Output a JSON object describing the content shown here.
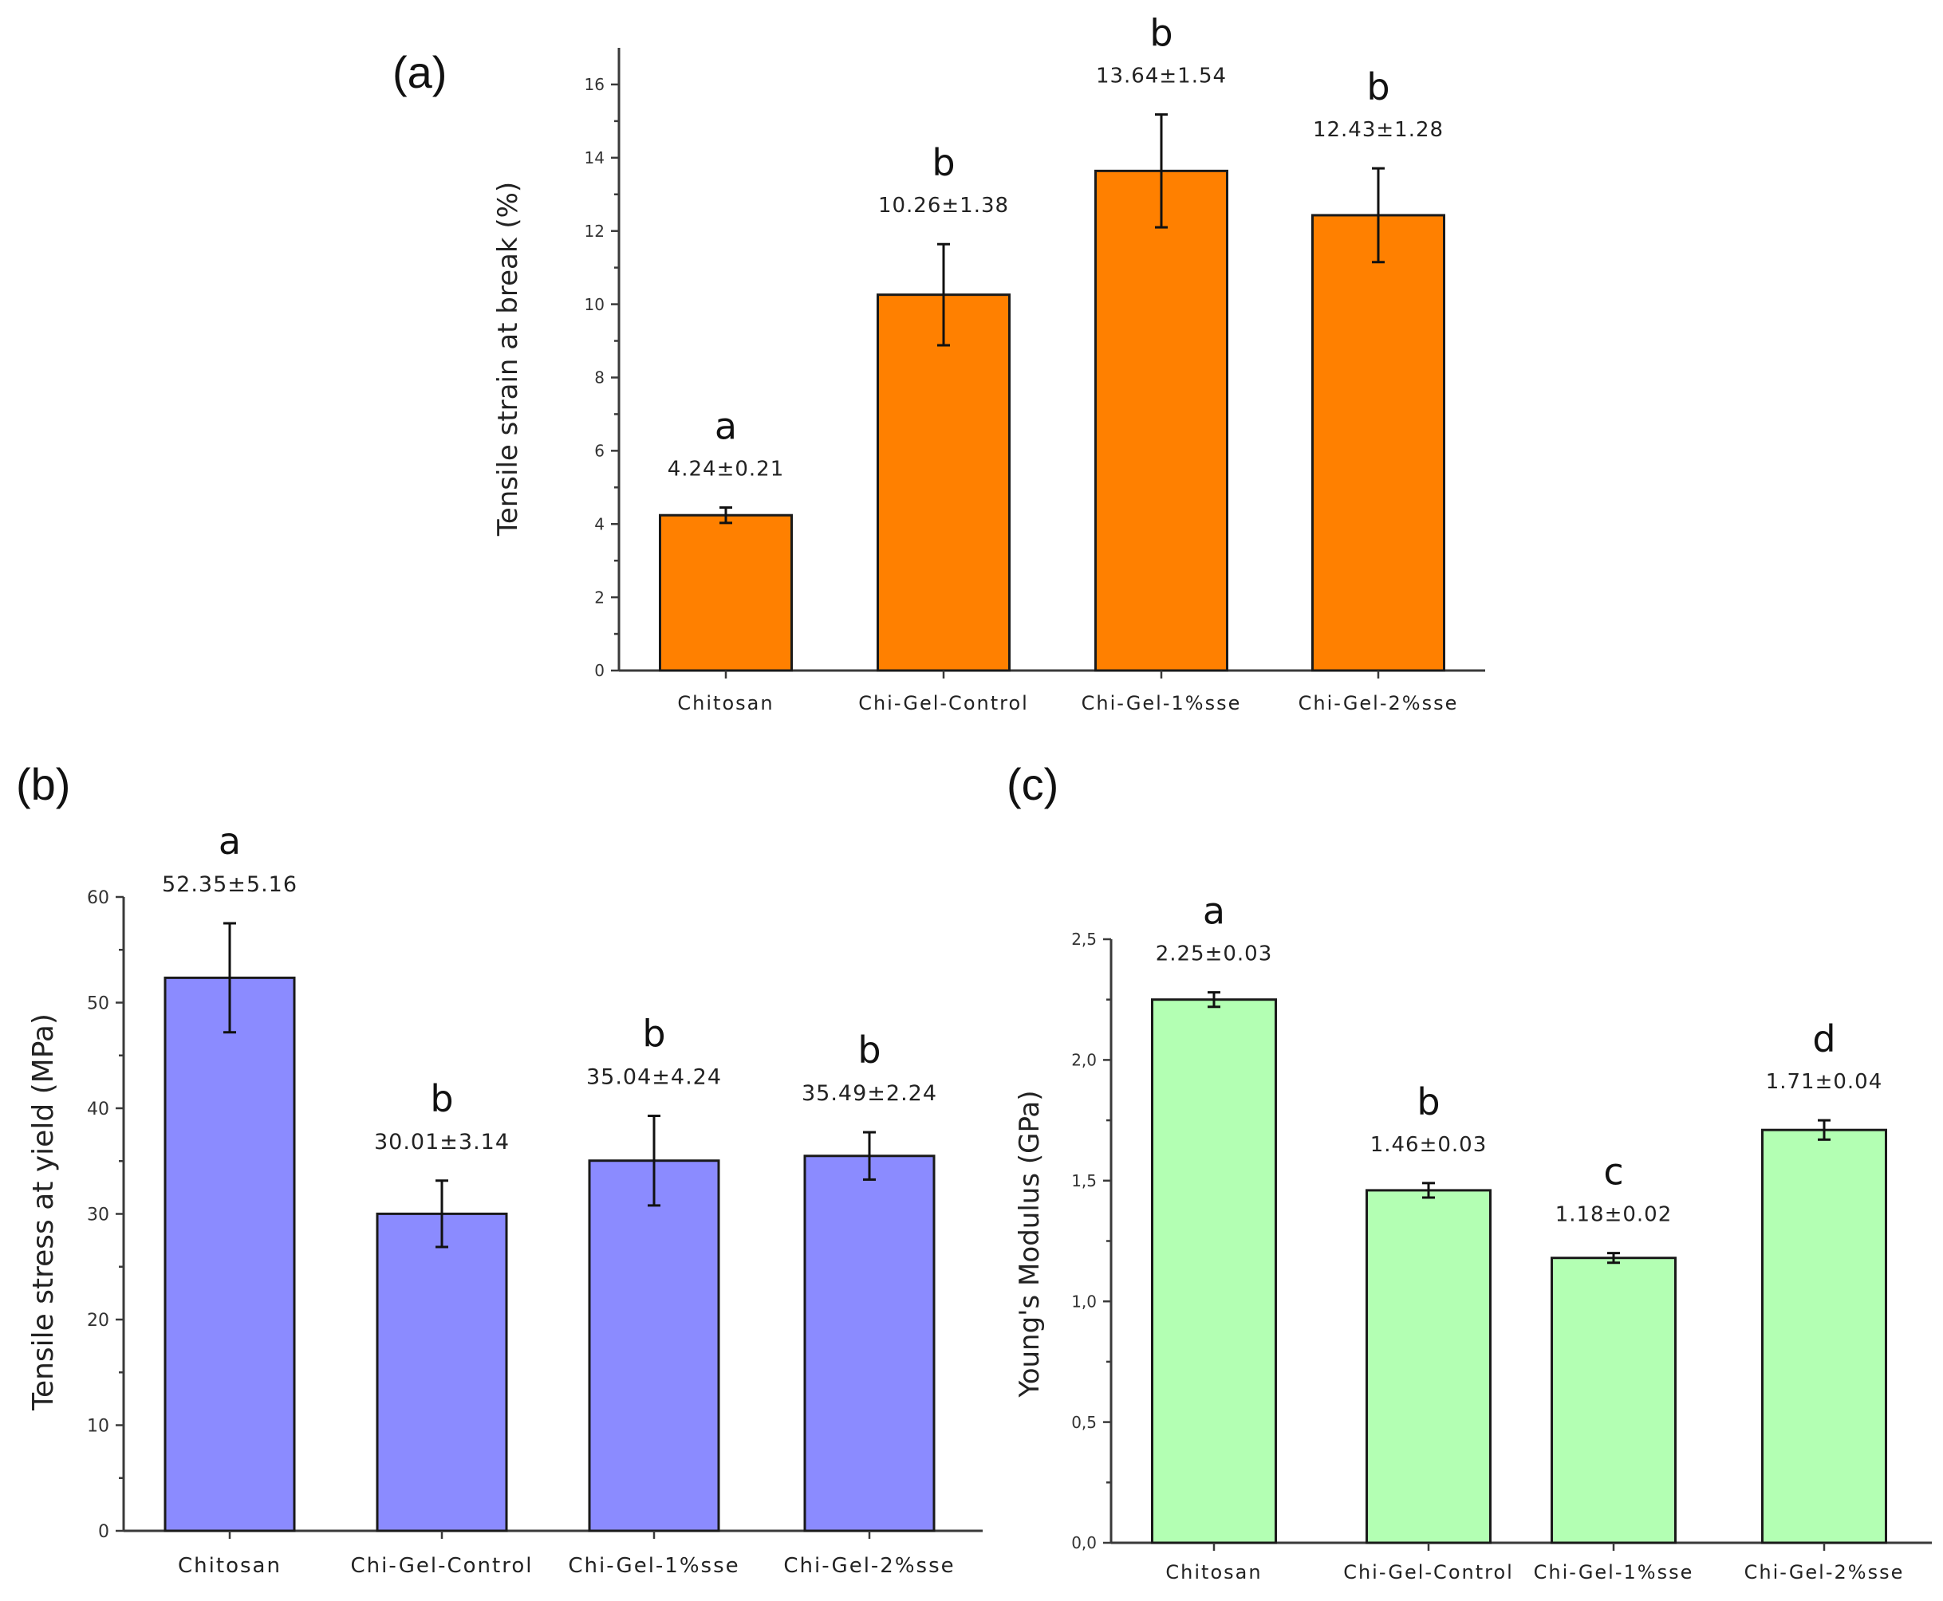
{
  "chart_data": [
    {
      "type": "bar",
      "panel_label": "(a)",
      "title": "",
      "xlabel": "",
      "ylabel": "Tensile strain at break (%)",
      "ylim": [
        0,
        17
      ],
      "yticks": [
        0,
        2,
        4,
        6,
        8,
        10,
        12,
        14,
        16
      ],
      "bar_color": "#ff8000",
      "categories": [
        "Chitosan",
        "Chi-Gel-Control",
        "Chi-Gel-1%sse",
        "Chi-Gel-2%sse"
      ],
      "values": [
        4.24,
        10.26,
        13.64,
        12.43
      ],
      "errors": [
        0.21,
        1.38,
        1.54,
        1.28
      ],
      "value_labels": [
        "4.24±0.21",
        "10.26±1.38",
        "13.64±1.54",
        "12.43±1.28"
      ],
      "letters": [
        "a",
        "b",
        "b",
        "b"
      ]
    },
    {
      "type": "bar",
      "panel_label": "(b)",
      "title": "",
      "xlabel": "",
      "ylabel": "Tensile stress at yield (MPa)",
      "ylim": [
        0,
        60
      ],
      "yticks": [
        0,
        10,
        20,
        30,
        40,
        50,
        60
      ],
      "bar_color": "#8b8bff",
      "categories": [
        "Chitosan",
        "Chi-Gel-Control",
        "Chi-Gel-1%sse",
        "Chi-Gel-2%sse"
      ],
      "values": [
        52.35,
        30.01,
        35.04,
        35.49
      ],
      "errors": [
        5.16,
        3.14,
        4.24,
        2.24
      ],
      "value_labels": [
        "52.35±5.16",
        "30.01±3.14",
        "35.04±4.24",
        "35.49±2.24"
      ],
      "letters": [
        "a",
        "b",
        "b",
        "b"
      ]
    },
    {
      "type": "bar",
      "panel_label": "(c)",
      "title": "",
      "xlabel": "",
      "ylabel": "Young's Modulus (GPa)",
      "ylim": [
        0,
        2.5
      ],
      "yticks": [
        0.0,
        0.5,
        1.0,
        1.5,
        2.0,
        2.5
      ],
      "ytick_labels": [
        "0,0",
        "0,5",
        "1,0",
        "1,5",
        "2,0",
        "2,5"
      ],
      "bar_color": "#b3ffb3",
      "categories": [
        "Chitosan",
        "Chi-Gel-Control",
        "Chi-Gel-1%sse",
        "Chi-Gel-2%sse"
      ],
      "values": [
        2.25,
        1.46,
        1.18,
        1.71
      ],
      "errors": [
        0.03,
        0.03,
        0.02,
        0.04
      ],
      "value_labels": [
        "2.25±0.03",
        "1.46±0.03",
        "1.18±0.02",
        "1.71±0.04"
      ],
      "letters": [
        "a",
        "b",
        "c",
        "d"
      ]
    }
  ]
}
